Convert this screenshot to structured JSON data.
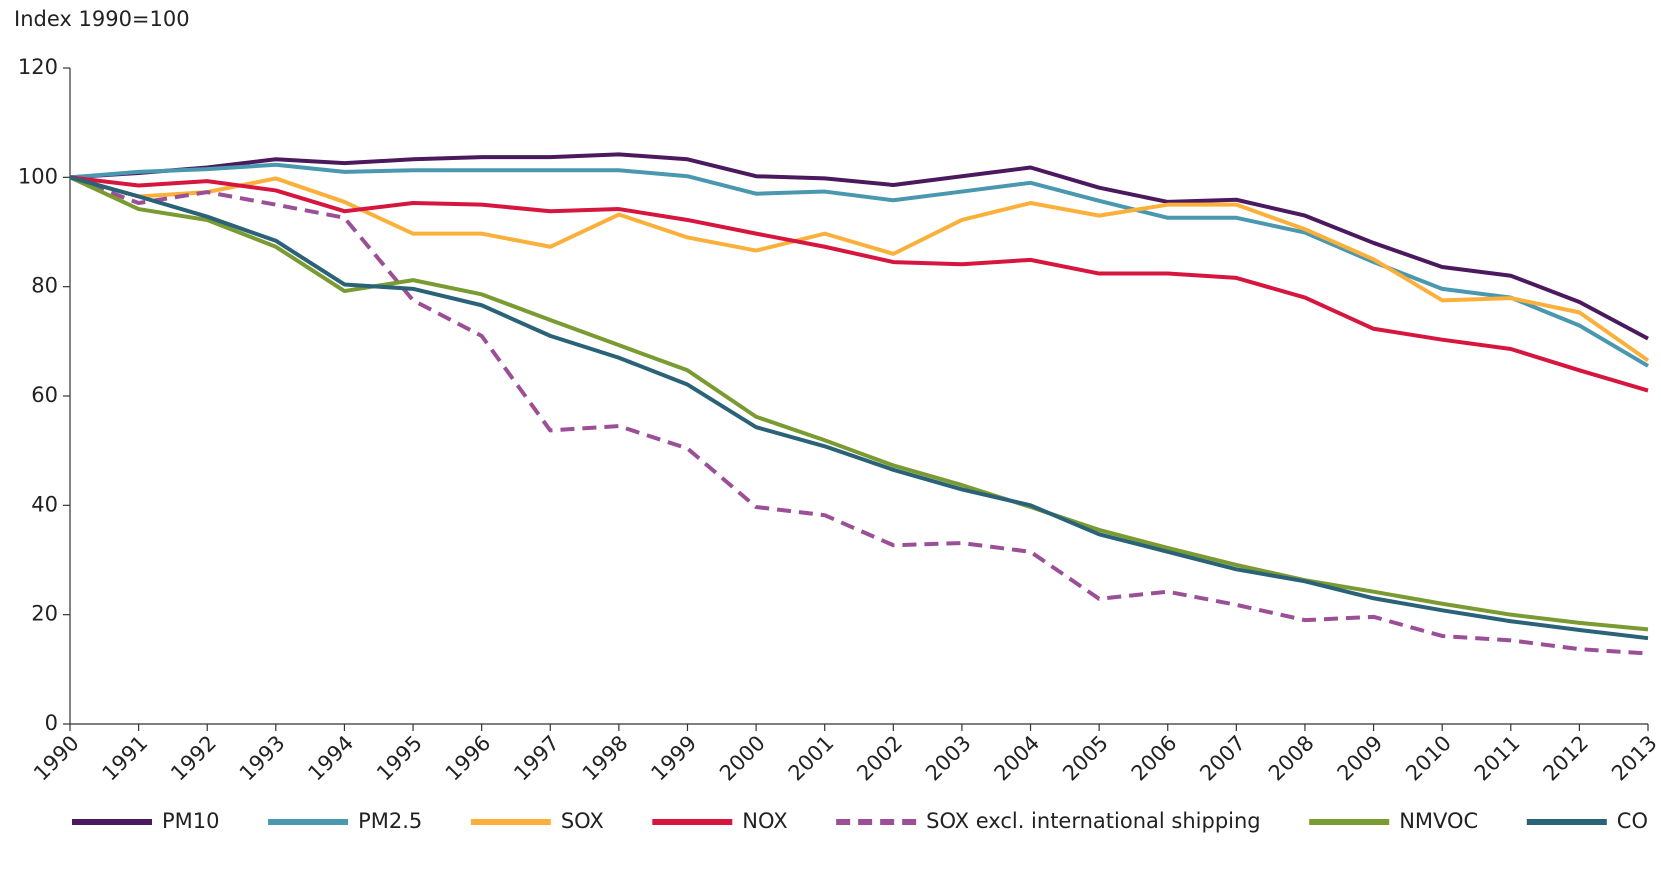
{
  "chart_data": {
    "type": "line",
    "y_label": "Index 1990=100",
    "categories": [
      "1990",
      "1991",
      "1992",
      "1993",
      "1994",
      "1995",
      "1996",
      "1997",
      "1998",
      "1999",
      "2000",
      "2001",
      "2002",
      "2003",
      "2004",
      "2005",
      "2006",
      "2007",
      "2008",
      "2009",
      "2010",
      "2011",
      "2012",
      "2013"
    ],
    "ylim": [
      0,
      120
    ],
    "yticks": [
      0,
      20,
      40,
      60,
      80,
      100,
      120
    ],
    "series": [
      {
        "name": "PM10",
        "color": "#4b1a5e",
        "values": [
          100,
          100.8,
          101.8,
          103.3,
          102.6,
          103.3,
          103.7,
          103.7,
          104.2,
          103.3,
          100.2,
          99.8,
          98.6,
          100.2,
          101.8,
          98.1,
          95.5,
          95.9,
          93,
          88,
          83.6,
          82,
          77.2,
          70.5
        ]
      },
      {
        "name": "PM2.5",
        "color": "#4a97b0",
        "values": [
          100,
          101,
          101.5,
          102.3,
          101,
          101.3,
          101.3,
          101.3,
          101.3,
          100.2,
          97,
          97.4,
          95.8,
          97.4,
          99,
          95.7,
          92.6,
          92.6,
          89.9,
          84.5,
          79.6,
          78,
          72.9,
          65.5
        ]
      },
      {
        "name": "SOX",
        "color": "#fbb03b",
        "values": [
          100,
          96.5,
          97.3,
          99.8,
          95.5,
          89.7,
          89.7,
          87.3,
          93.2,
          89,
          86.6,
          89.7,
          86,
          92.2,
          95.3,
          93,
          95,
          95,
          90.5,
          85,
          77.5,
          77.9,
          75.3,
          66.5
        ]
      },
      {
        "name": "NOX",
        "color": "#d6163f",
        "values": [
          100,
          98.5,
          99.3,
          97.6,
          93.8,
          95.3,
          95,
          93.8,
          94.2,
          92.2,
          89.7,
          87.3,
          84.5,
          84.1,
          84.9,
          82.4,
          82.4,
          81.6,
          78,
          72.3,
          70.3,
          68.6,
          64.7,
          61
        ]
      },
      {
        "name": "SOX excl. international shipping",
        "color": "#9b4f96",
        "style": "dashed",
        "values": [
          100,
          95.3,
          97.3,
          95,
          92.6,
          77.5,
          71,
          53.7,
          54.5,
          50.4,
          39.7,
          38.2,
          32.7,
          33.1,
          31.5,
          22.9,
          24.2,
          21.8,
          19,
          19.6,
          16.1,
          15.3,
          13.7,
          12.9
        ]
      },
      {
        "name": "NMVOC",
        "color": "#7a9a32",
        "values": [
          100,
          94.2,
          92.2,
          87.3,
          79.2,
          81.2,
          78.6,
          73.9,
          69.3,
          64.7,
          56.2,
          51.9,
          47.3,
          43.7,
          39.7,
          35.5,
          32.2,
          29.1,
          26.3,
          24.2,
          22,
          20,
          18.5,
          17.3
        ]
      },
      {
        "name": "CO",
        "color": "#2a6277",
        "values": [
          100,
          96.5,
          92.8,
          88.4,
          80.4,
          79.6,
          76.6,
          71,
          67,
          62.1,
          54.3,
          50.8,
          46.5,
          42.9,
          40,
          34.7,
          31.5,
          28.3,
          26.1,
          23,
          20.8,
          18.8,
          17.2,
          15.7
        ]
      }
    ]
  }
}
